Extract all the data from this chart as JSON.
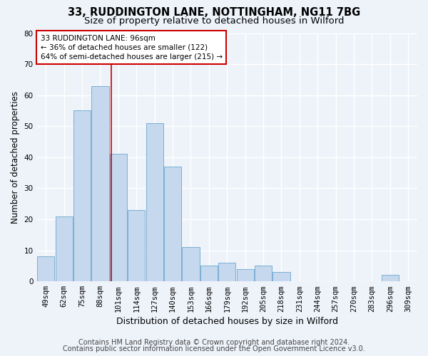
{
  "title1": "33, RUDDINGTON LANE, NOTTINGHAM, NG11 7BG",
  "title2": "Size of property relative to detached houses in Wilford",
  "xlabel": "Distribution of detached houses by size in Wilford",
  "ylabel": "Number of detached properties",
  "categories": [
    "49sqm",
    "62sqm",
    "75sqm",
    "88sqm",
    "101sqm",
    "114sqm",
    "127sqm",
    "140sqm",
    "153sqm",
    "166sqm",
    "179sqm",
    "192sqm",
    "205sqm",
    "218sqm",
    "231sqm",
    "244sqm",
    "257sqm",
    "270sqm",
    "283sqm",
    "296sqm",
    "309sqm"
  ],
  "values": [
    8,
    21,
    55,
    63,
    41,
    23,
    51,
    37,
    11,
    5,
    6,
    4,
    5,
    3,
    0,
    0,
    0,
    0,
    0,
    2,
    0
  ],
  "bar_color": "#c5d8ed",
  "bar_edge_color": "#7bafd4",
  "red_line_x": 3.62,
  "annotation_line1": "33 RUDDINGTON LANE: 96sqm",
  "annotation_line2": "← 36% of detached houses are smaller (122)",
  "annotation_line3": "64% of semi-detached houses are larger (215) →",
  "annotation_box_color": "#ffffff",
  "annotation_box_edge": "#cc0000",
  "footer1": "Contains HM Land Registry data © Crown copyright and database right 2024.",
  "footer2": "Contains public sector information licensed under the Open Government Licence v3.0.",
  "ylim": [
    0,
    80
  ],
  "yticks": [
    0,
    10,
    20,
    30,
    40,
    50,
    60,
    70,
    80
  ],
  "background_color": "#eef3fa",
  "grid_color": "#ffffff",
  "title1_fontsize": 10.5,
  "title2_fontsize": 9.5,
  "xlabel_fontsize": 9,
  "ylabel_fontsize": 8.5,
  "tick_fontsize": 7.5,
  "annotation_fontsize": 7.5,
  "footer_fontsize": 7
}
